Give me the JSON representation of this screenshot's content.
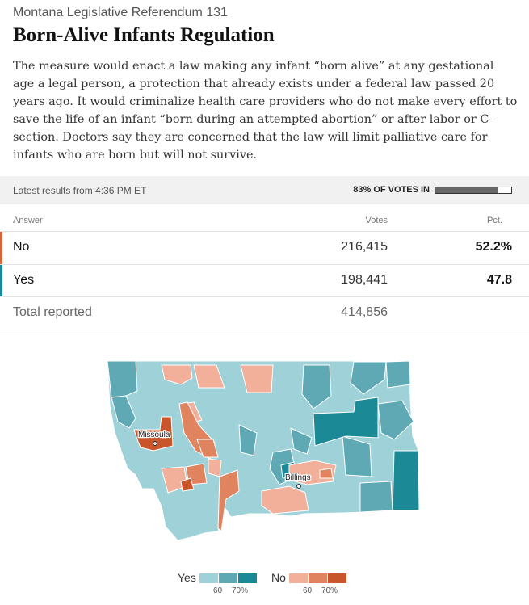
{
  "header": {
    "kicker": "Montana Legislative Referendum 131",
    "title": "Born-Alive Infants Regulation",
    "description": "The measure would enact a law making any infant “born alive” at any gestational age a legal person, a protection that already exists under a federal law passed 20 years ago. It would criminalize health care providers who do not make every effort to save the life of an infant “born during an attempted abortion” or after labor or C-section. Doctors say they are concerned that the law will limit palliative care for infants who are born but will not survive."
  },
  "status": {
    "latest": "Latest results from 4:36 PM ET",
    "votes_in_label": "83% OF VOTES IN",
    "votes_in_fraction": 0.83
  },
  "table": {
    "headers": {
      "answer": "Answer",
      "votes": "Votes",
      "pct": "Pct."
    },
    "rows": [
      {
        "answer": "No",
        "votes": "216,415",
        "pct": "52.2%",
        "color": "#d2653c"
      },
      {
        "answer": "Yes",
        "votes": "198,441",
        "pct": "47.8",
        "color": "#1b8a96"
      }
    ],
    "total": {
      "label": "Total reported",
      "votes": "414,856"
    }
  },
  "map": {
    "cities": [
      "Missoula",
      "Billings"
    ],
    "colors": {
      "yes_light": "#9fd1d9",
      "yes_mid": "#5fa9b4",
      "yes_dark": "#1b8a96",
      "no_light": "#f2b09a",
      "no_mid": "#e0845f",
      "no_dark": "#c9552a"
    }
  },
  "legend": {
    "yes_label": "Yes",
    "no_label": "No",
    "ticks": [
      "60",
      "70%"
    ]
  }
}
